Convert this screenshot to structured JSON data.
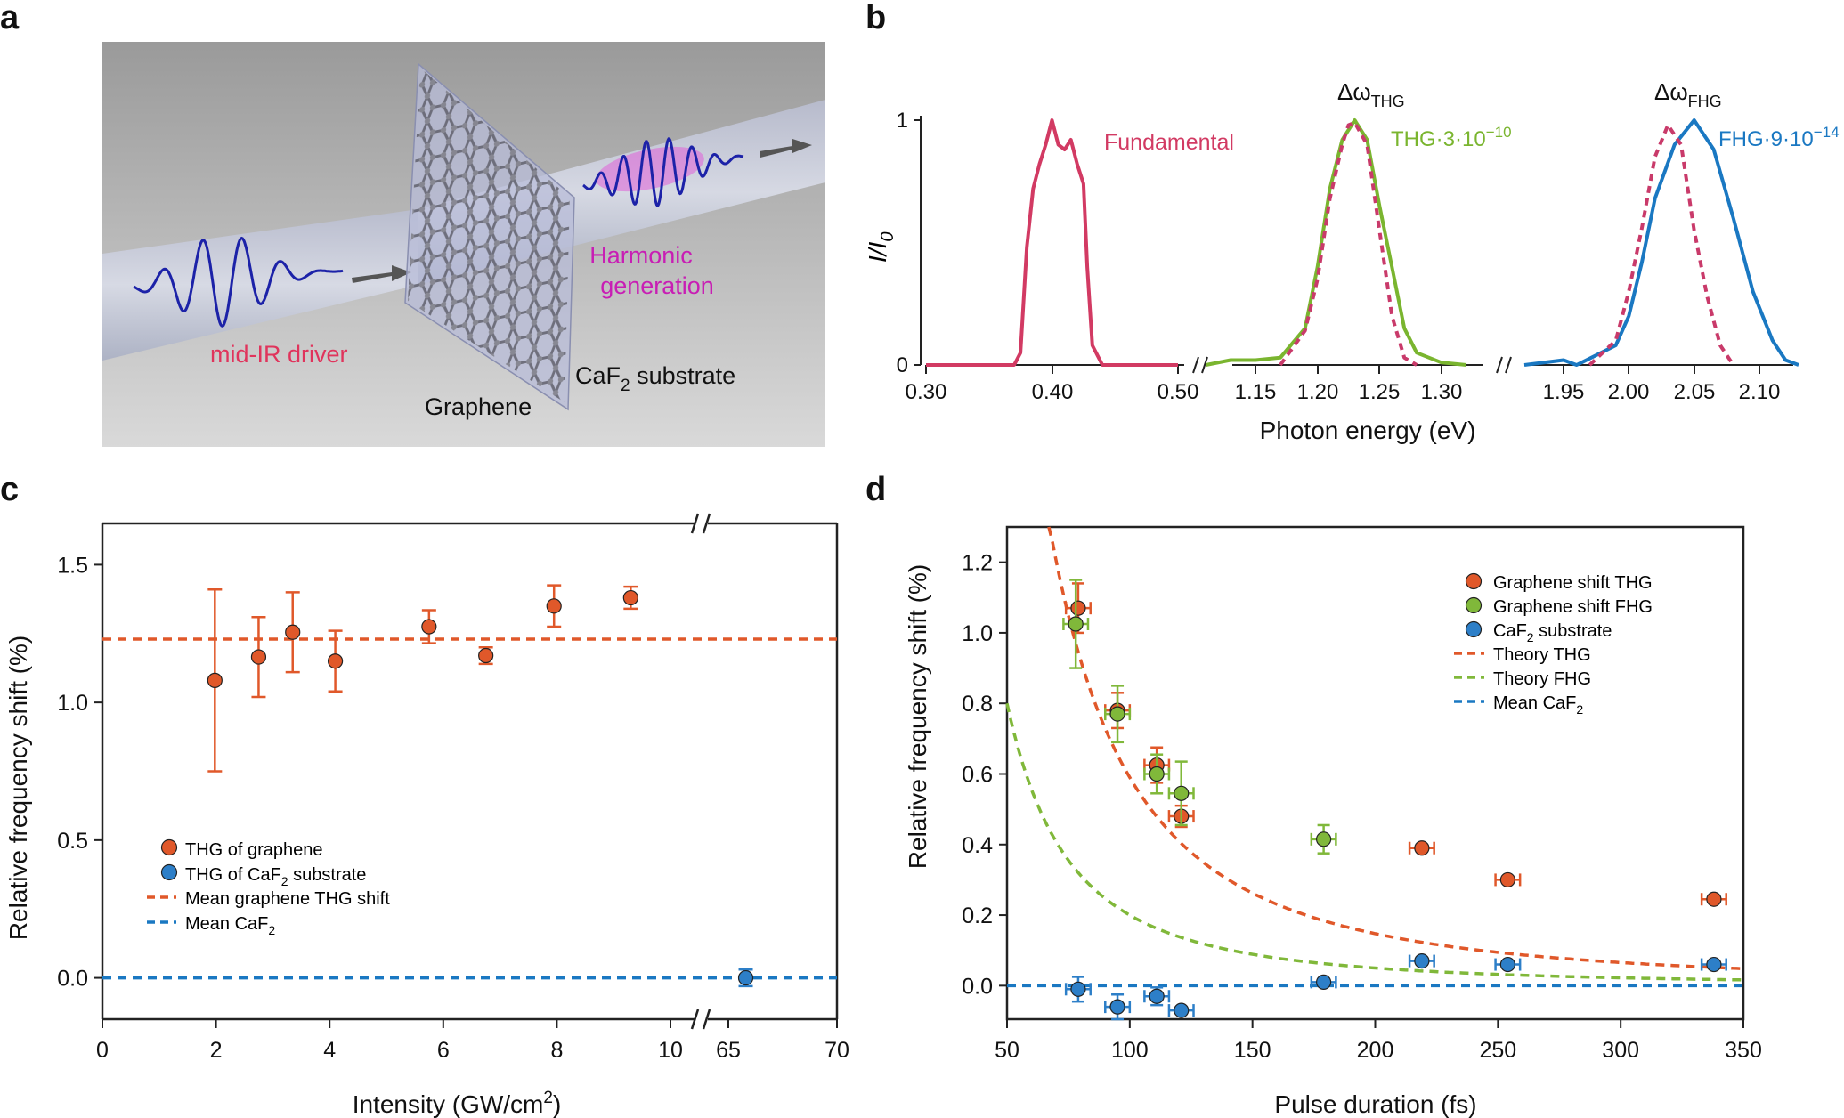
{
  "panels": {
    "a": {
      "label": "a",
      "driver_label": "mid-IR driver",
      "harmonic_label_1": "Harmonic",
      "harmonic_label_2": "generation",
      "substrate_label_pre": "CaF",
      "substrate_sub": "2",
      "substrate_label_post": " substrate",
      "graphene_label": "Graphene",
      "colors": {
        "driver": "#e0345c",
        "harmonic": "#c81eb4",
        "wave": "#1c22a8"
      }
    },
    "b": {
      "label": "b",
      "ylabel_main": "I/I",
      "ylabel_sub": "0",
      "xlabel": "Photon energy (eV)",
      "yticks": [
        "0",
        "1"
      ],
      "fundamental_label": "Fundamental",
      "thg_label": "THG·3·10",
      "thg_exp": "−10",
      "fhg_label": "FHG·9·10",
      "fhg_exp": "−14",
      "dw_thg_main": "Δω",
      "dw_thg_sub": "THG",
      "dw_fhg_main": "Δω",
      "dw_fhg_sub": "FHG",
      "seg1_ticks": [
        "0.30",
        "0.40",
        "0.50"
      ],
      "seg2_ticks": [
        "1.15",
        "1.20",
        "1.25",
        "1.30"
      ],
      "seg3_ticks": [
        "1.95",
        "2.00",
        "2.05",
        "2.10"
      ],
      "colors": {
        "fundamental": "#d23a63",
        "thg": "#7ab52f",
        "fhg": "#1a78c2",
        "dashed": "#c93a6a"
      }
    },
    "c": {
      "label": "c",
      "ylabel": "Relative frequency shift (%)",
      "xlabel_pre": "Intensity (GW/cm",
      "xlabel_sup": "2",
      "xlabel_post": ")",
      "yticks": [
        "0.0",
        "0.5",
        "1.0",
        "1.5"
      ],
      "xticks_left": [
        "0",
        "2",
        "4",
        "6",
        "8",
        "10"
      ],
      "xticks_right": [
        "65",
        "70"
      ],
      "legend": {
        "graphene": "THG of graphene",
        "caf2_pre": "THG of CaF",
        "caf2_sub": "2",
        "caf2_post": " substrate",
        "mean_graphene": "Mean graphene THG shift",
        "mean_caf2_pre": "Mean CaF",
        "mean_caf2_sub": "2"
      },
      "colors": {
        "graphene": "#e0582a",
        "caf2": "#2d7fc8",
        "mean_graphene": "#e0582a",
        "mean_caf2": "#1a78c2"
      }
    },
    "d": {
      "label": "d",
      "ylabel": "Relative frequency shift (%)",
      "xlabel": "Pulse duration (fs)",
      "yticks": [
        "0.0",
        "0.2",
        "0.4",
        "0.6",
        "0.8",
        "1.0",
        "1.2"
      ],
      "xticks": [
        "50",
        "100",
        "150",
        "200",
        "250",
        "300",
        "350"
      ],
      "legend": {
        "thg": "Graphene shift THG",
        "fhg": "Graphene shift FHG",
        "caf2_pre": "CaF",
        "caf2_sub": "2",
        "caf2_post": " substrate",
        "theory_thg": "Theory THG",
        "theory_fhg": "Theory FHG",
        "mean_caf2_pre": "Mean CaF",
        "mean_caf2_sub": "2"
      },
      "colors": {
        "thg": "#e0582a",
        "fhg": "#80b83a",
        "caf2": "#2d7fc8",
        "theory_thg": "#e0582a",
        "theory_fhg": "#80b83a",
        "mean_caf2": "#1a78c2"
      }
    }
  },
  "chart_data": [
    {
      "panel": "b",
      "type": "line",
      "xlabel": "Photon energy (eV)",
      "ylabel": "I/I0",
      "ylim": [
        0,
        1
      ],
      "broken_axis_segments": [
        [
          0.3,
          0.5
        ],
        [
          1.11,
          1.34
        ],
        [
          1.92,
          2.14
        ]
      ],
      "series": [
        {
          "name": "Fundamental",
          "style": "solid",
          "points": [
            [
              0.3,
              0
            ],
            [
              0.37,
              0
            ],
            [
              0.375,
              0.05
            ],
            [
              0.38,
              0.48
            ],
            [
              0.385,
              0.72
            ],
            [
              0.39,
              0.82
            ],
            [
              0.395,
              0.9
            ],
            [
              0.4,
              1.0
            ],
            [
              0.405,
              0.9
            ],
            [
              0.41,
              0.88
            ],
            [
              0.415,
              0.92
            ],
            [
              0.42,
              0.82
            ],
            [
              0.425,
              0.74
            ],
            [
              0.428,
              0.4
            ],
            [
              0.432,
              0.08
            ],
            [
              0.44,
              0
            ],
            [
              0.5,
              0
            ]
          ]
        },
        {
          "name": "THG·3·10−10",
          "style": "solid",
          "points": [
            [
              1.11,
              0
            ],
            [
              1.13,
              0.02
            ],
            [
              1.15,
              0.02
            ],
            [
              1.17,
              0.03
            ],
            [
              1.19,
              0.15
            ],
            [
              1.2,
              0.4
            ],
            [
              1.21,
              0.72
            ],
            [
              1.22,
              0.92
            ],
            [
              1.23,
              1.0
            ],
            [
              1.24,
              0.92
            ],
            [
              1.25,
              0.65
            ],
            [
              1.26,
              0.4
            ],
            [
              1.27,
              0.15
            ],
            [
              1.28,
              0.05
            ],
            [
              1.3,
              0.01
            ],
            [
              1.32,
              0
            ]
          ]
        },
        {
          "style": "dashed",
          "points": [
            [
              1.17,
              0
            ],
            [
              1.19,
              0.14
            ],
            [
              1.2,
              0.35
            ],
            [
              1.21,
              0.68
            ],
            [
              1.22,
              0.9
            ],
            [
              1.225,
              0.98
            ],
            [
              1.23,
              0.99
            ],
            [
              1.24,
              0.9
            ],
            [
              1.25,
              0.55
            ],
            [
              1.26,
              0.2
            ],
            [
              1.27,
              0.03
            ],
            [
              1.28,
              0
            ]
          ]
        },
        {
          "name": "FHG·9·10−14",
          "style": "solid",
          "points": [
            [
              1.92,
              0
            ],
            [
              1.95,
              0.02
            ],
            [
              1.96,
              0
            ],
            [
              1.99,
              0.08
            ],
            [
              2.0,
              0.2
            ],
            [
              2.01,
              0.42
            ],
            [
              2.02,
              0.68
            ],
            [
              2.035,
              0.9
            ],
            [
              2.05,
              1.0
            ],
            [
              2.065,
              0.88
            ],
            [
              2.08,
              0.6
            ],
            [
              2.095,
              0.3
            ],
            [
              2.11,
              0.1
            ],
            [
              2.12,
              0.02
            ],
            [
              2.13,
              0
            ]
          ]
        },
        {
          "style": "dashed",
          "points": [
            [
              1.97,
              0
            ],
            [
              1.99,
              0.1
            ],
            [
              2.0,
              0.3
            ],
            [
              2.01,
              0.56
            ],
            [
              2.02,
              0.85
            ],
            [
              2.03,
              0.98
            ],
            [
              2.04,
              0.9
            ],
            [
              2.05,
              0.55
            ],
            [
              2.06,
              0.28
            ],
            [
              2.07,
              0.08
            ],
            [
              2.08,
              0
            ]
          ]
        }
      ]
    },
    {
      "panel": "c",
      "type": "scatter",
      "xlabel": "Intensity (GW/cm2)",
      "ylabel": "Relative frequency shift (%)",
      "ylim": [
        -0.15,
        1.65
      ],
      "broken_axis_segments": [
        [
          0,
          10.5
        ],
        [
          63.5,
          70
        ]
      ],
      "series": [
        {
          "name": "THG of graphene",
          "points": [
            [
              1.98,
              1.08,
              0.33
            ],
            [
              2.75,
              1.165,
              0.145
            ],
            [
              3.35,
              1.255,
              0.145
            ],
            [
              4.1,
              1.15,
              0.11
            ],
            [
              5.75,
              1.275,
              0.06
            ],
            [
              6.75,
              1.17,
              0.03
            ],
            [
              7.95,
              1.35,
              0.075
            ],
            [
              9.3,
              1.38,
              0.04
            ]
          ]
        },
        {
          "name": "THG of CaF2 substrate",
          "points": [
            [
              65.8,
              0.0,
              0.03
            ]
          ]
        }
      ],
      "reference_lines": [
        {
          "name": "Mean graphene THG shift",
          "y": 1.23
        },
        {
          "name": "Mean CaF2",
          "y": 0.0
        }
      ]
    },
    {
      "panel": "d",
      "type": "scatter",
      "xlabel": "Pulse duration (fs)",
      "ylabel": "Relative frequency shift (%)",
      "xlim": [
        50,
        350
      ],
      "ylim": [
        -0.095,
        1.3
      ],
      "series": [
        {
          "name": "Graphene shift THG",
          "points": [
            [
              79,
              1.07,
              5,
              0.07
            ],
            [
              95,
              0.78,
              5,
              0.05
            ],
            [
              111,
              0.625,
              5,
              0.05
            ],
            [
              121,
              0.48,
              5,
              0.03
            ],
            [
              219,
              0.39,
              5,
              0.01
            ],
            [
              254,
              0.3,
              5,
              0.01
            ],
            [
              338,
              0.245,
              5,
              0.01
            ]
          ]
        },
        {
          "name": "Graphene shift FHG",
          "points": [
            [
              78,
              1.025,
              5,
              0.125
            ],
            [
              95,
              0.77,
              5,
              0.08
            ],
            [
              111,
              0.6,
              5,
              0.055
            ],
            [
              121,
              0.545,
              5,
              0.09
            ],
            [
              179,
              0.415,
              5,
              0.04
            ]
          ]
        },
        {
          "name": "CaF2 substrate",
          "points": [
            [
              79,
              -0.01,
              5,
              0.035
            ],
            [
              95,
              -0.06,
              5,
              0.035
            ],
            [
              111,
              -0.03,
              5,
              0.025
            ],
            [
              121,
              -0.07,
              5,
              0.01
            ],
            [
              179,
              0.01,
              5,
              0.01
            ],
            [
              219,
              0.07,
              5,
              0.01
            ],
            [
              254,
              0.06,
              5,
              0.01
            ],
            [
              338,
              0.06,
              5,
              0.01
            ]
          ]
        },
        {
          "name": "Theory THG",
          "style": "dashed",
          "model": "A/(x^2)",
          "A": 5900,
          "x_range": [
            67,
            350
          ]
        },
        {
          "name": "Theory FHG",
          "style": "dashed",
          "model": "A/(x^2)",
          "A": 2000,
          "x_range": [
            50,
            350
          ]
        },
        {
          "name": "Mean CaF2",
          "style": "dashed",
          "y": 0.0
        }
      ]
    }
  ]
}
